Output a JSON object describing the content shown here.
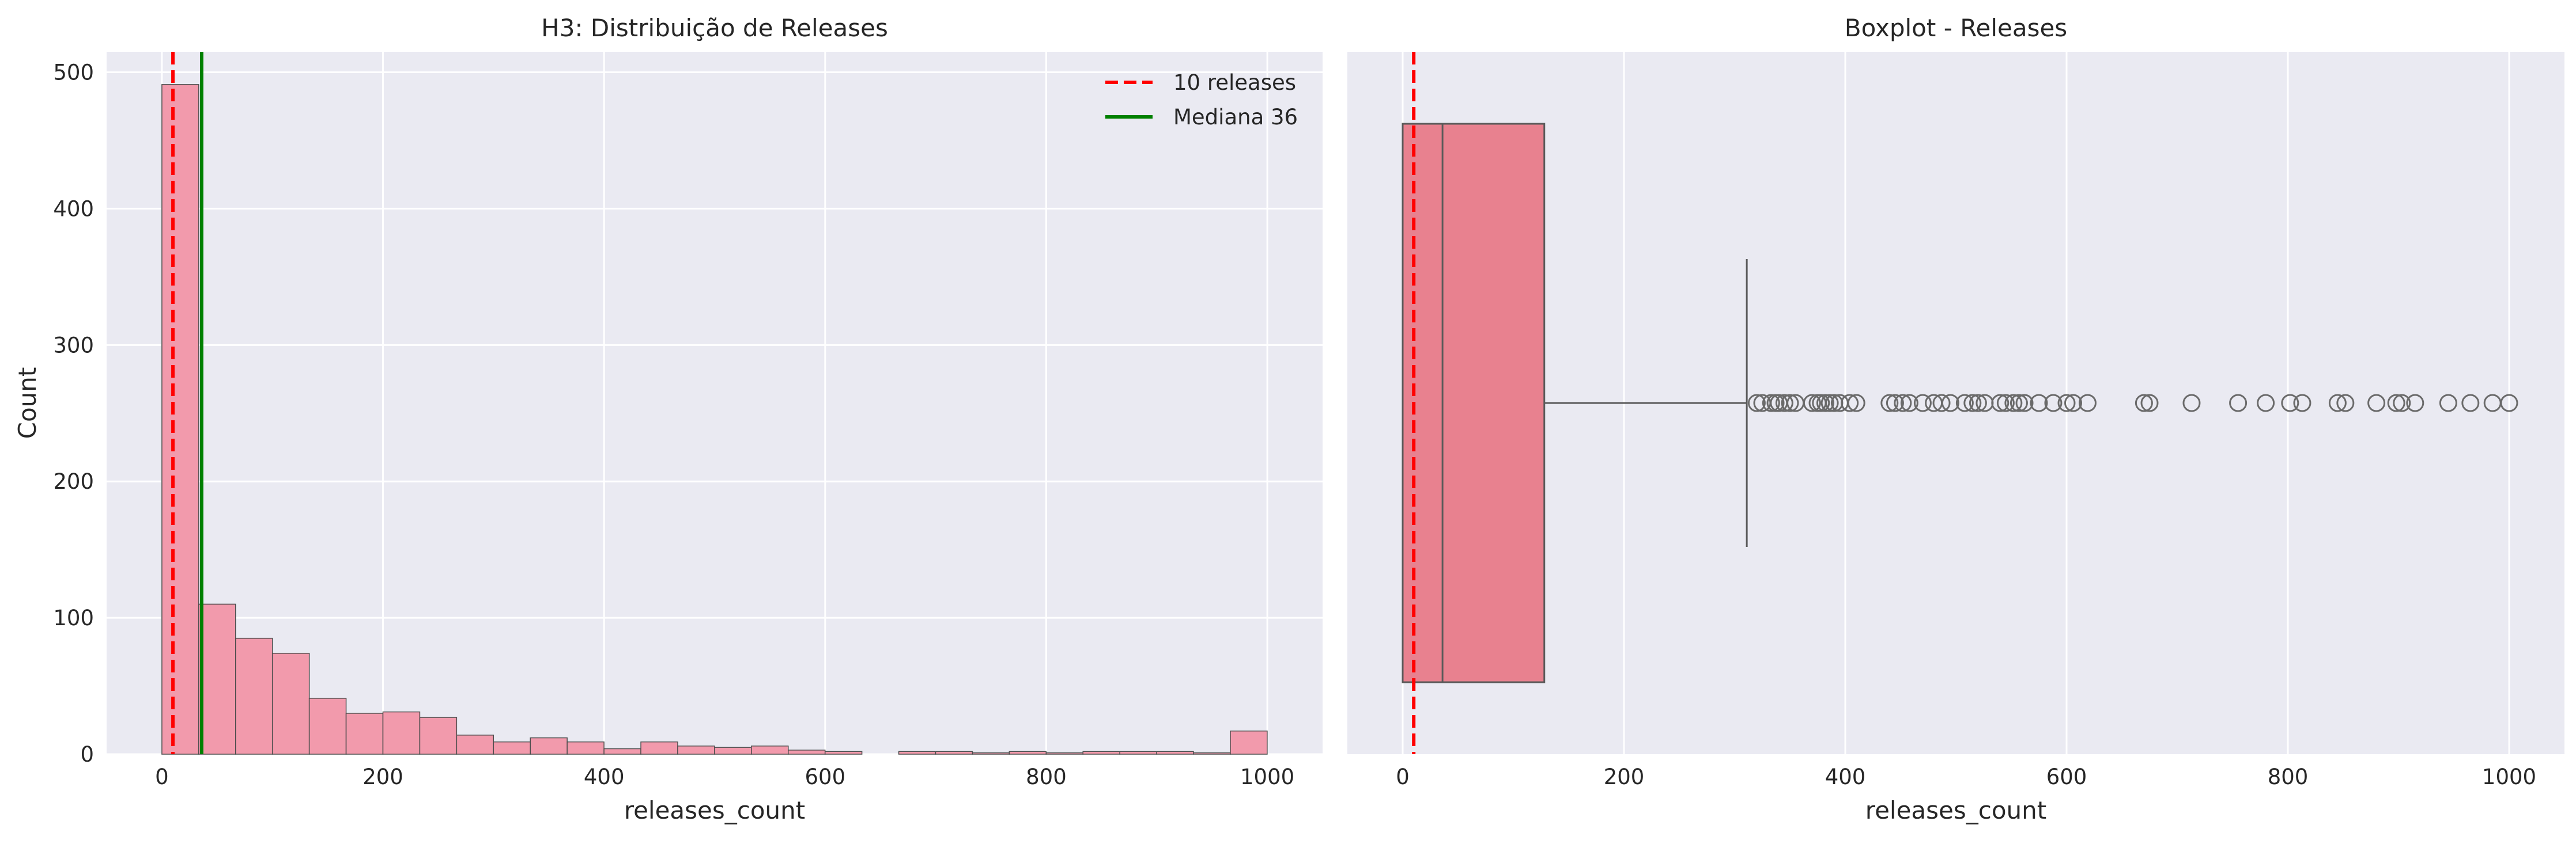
{
  "chart_data": [
    {
      "type": "bar",
      "subtype": "histogram",
      "title": "H3: Distribuição de Releases",
      "xlabel": "releases_count",
      "ylabel": "Count",
      "xlim": [
        -50,
        1050
      ],
      "ylim": [
        0,
        515
      ],
      "xticks": [
        0,
        200,
        400,
        600,
        800,
        1000
      ],
      "yticks": [
        0,
        100,
        200,
        300,
        400,
        500
      ],
      "bin_start": 0,
      "bin_width": 33.33,
      "counts": [
        491,
        110,
        85,
        74,
        41,
        30,
        31,
        27,
        14,
        9,
        12,
        9,
        4,
        9,
        6,
        5,
        6,
        3,
        2,
        0,
        2,
        2,
        1,
        2,
        1,
        2,
        2,
        2,
        1,
        17
      ],
      "bar_color": "#f29aac",
      "grid": true,
      "background": "#eaeaf2",
      "lines": [
        {
          "name": "10 releases",
          "x": 10,
          "color": "#ff0000",
          "style": "dashed"
        },
        {
          "name": "Mediana 36",
          "x": 36,
          "color": "#008000",
          "style": "solid"
        }
      ],
      "legend": {
        "position": "top-right",
        "entries": [
          "10 releases",
          "Mediana 36"
        ]
      }
    },
    {
      "type": "boxplot",
      "title": "Boxplot - Releases",
      "xlabel": "releases_count",
      "xlim": [
        -50,
        1050
      ],
      "xticks": [
        0,
        200,
        400,
        600,
        800,
        1000
      ],
      "min": 0,
      "q1": 0,
      "median": 36,
      "q3": 128,
      "whisker_high": 311,
      "outliers": [
        320,
        325,
        333,
        337,
        340,
        345,
        350,
        355,
        370,
        375,
        378,
        382,
        386,
        390,
        395,
        404,
        410,
        440,
        445,
        452,
        458,
        470,
        480,
        487,
        495,
        508,
        515,
        520,
        526,
        540,
        545,
        552,
        557,
        562,
        575,
        588,
        600,
        606,
        619,
        670,
        675,
        713,
        755,
        780,
        802,
        813,
        845,
        852,
        880,
        898,
        903,
        915,
        945,
        965,
        985,
        1000
      ],
      "box_color": "#e8818f",
      "grid": true,
      "background": "#eaeaf2",
      "lines": [
        {
          "x": 10,
          "color": "#ff0000",
          "style": "dashed"
        }
      ]
    }
  ]
}
